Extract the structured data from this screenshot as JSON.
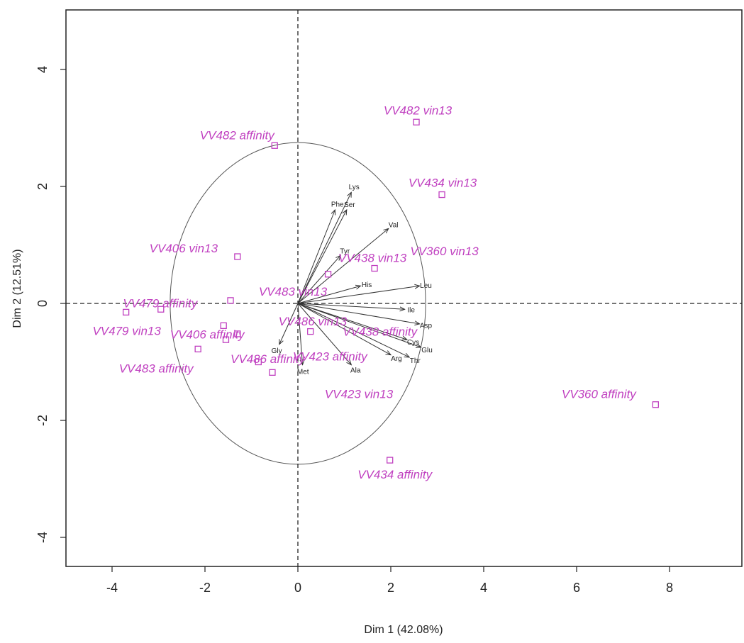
{
  "chart_data": {
    "type": "scatter",
    "title": "",
    "xlabel": "Dim 1 (42.08%)",
    "ylabel": "Dim 2 (12.51%)",
    "xlim": [
      -5,
      9.7
    ],
    "ylim": [
      -4.5,
      5.1
    ],
    "x_ticks": [
      -4,
      -2,
      0,
      2,
      4,
      6,
      8
    ],
    "y_ticks": [
      -4,
      -2,
      0,
      2,
      4
    ],
    "grid": false,
    "reference_lines": {
      "x": 0,
      "y": 0,
      "style": "dashed"
    },
    "circle": {
      "center": [
        0,
        0
      ],
      "radius_x": 2.75,
      "radius_y": 2.75
    },
    "point_color": "#c040c0",
    "points": [
      {
        "label": "VV482 affinity",
        "x": -0.5,
        "y": 2.7
      },
      {
        "label": "VV482 vin13",
        "x": 2.55,
        "y": 3.1
      },
      {
        "label": "VV434 vin13",
        "x": 3.1,
        "y": 1.86
      },
      {
        "label": "VV406 vin13",
        "x": -1.3,
        "y": 0.8
      },
      {
        "label": "VV438 vin13",
        "x": 1.65,
        "y": 0.6
      },
      {
        "label": "VV479 affinity",
        "x": -2.95,
        "y": -0.1
      },
      {
        "label": "VV479 vin13",
        "x": -3.7,
        "y": -0.15
      },
      {
        "label": "VV483 vin13",
        "x": -1.45,
        "y": 0.05
      },
      {
        "label": "VV486 vin13",
        "x": -1.3,
        "y": -0.52
      },
      {
        "label": "VV406 affinity",
        "x": -1.6,
        "y": -0.38
      },
      {
        "label": "VV483 affinity",
        "x": -2.15,
        "y": -0.78
      },
      {
        "label": "VV486 affinity",
        "x": -1.55,
        "y": -0.62
      },
      {
        "label": "VV423 affinity",
        "x": -0.85,
        "y": -1.0
      },
      {
        "label": "VV423 vin13",
        "x": -0.55,
        "y": -1.18
      },
      {
        "label": "VV438 affinity",
        "x": 0.27,
        "y": -0.48
      },
      {
        "label": "VV360 vin13",
        "x": 0.65,
        "y": 0.5
      },
      {
        "label": "VV434 affinity",
        "x": 1.98,
        "y": -2.68
      },
      {
        "label": "VV360 affinity",
        "x": 7.7,
        "y": -1.73
      }
    ],
    "variables": [
      {
        "name": "Lys",
        "x": 1.15,
        "y": 1.9
      },
      {
        "name": "Phe",
        "x": 0.8,
        "y": 1.6
      },
      {
        "name": "Ser",
        "x": 1.05,
        "y": 1.6
      },
      {
        "name": "Val",
        "x": 1.95,
        "y": 1.28
      },
      {
        "name": "Tyr",
        "x": 0.92,
        "y": 0.82
      },
      {
        "name": "His",
        "x": 1.35,
        "y": 0.3
      },
      {
        "name": "Leu",
        "x": 2.62,
        "y": 0.3
      },
      {
        "name": "Ile",
        "x": 2.3,
        "y": -0.1
      },
      {
        "name": "Asp",
        "x": 2.62,
        "y": -0.35
      },
      {
        "name": "Cys",
        "x": 2.35,
        "y": -0.62
      },
      {
        "name": "Glu",
        "x": 2.65,
        "y": -0.75
      },
      {
        "name": "Thr",
        "x": 2.4,
        "y": -0.92
      },
      {
        "name": "Arg",
        "x": 2.0,
        "y": -0.88
      },
      {
        "name": "Ala",
        "x": 1.15,
        "y": -1.05
      },
      {
        "name": "Met",
        "x": 0.1,
        "y": -1.05
      },
      {
        "name": "Gly",
        "x": -0.4,
        "y": -0.7
      }
    ]
  }
}
